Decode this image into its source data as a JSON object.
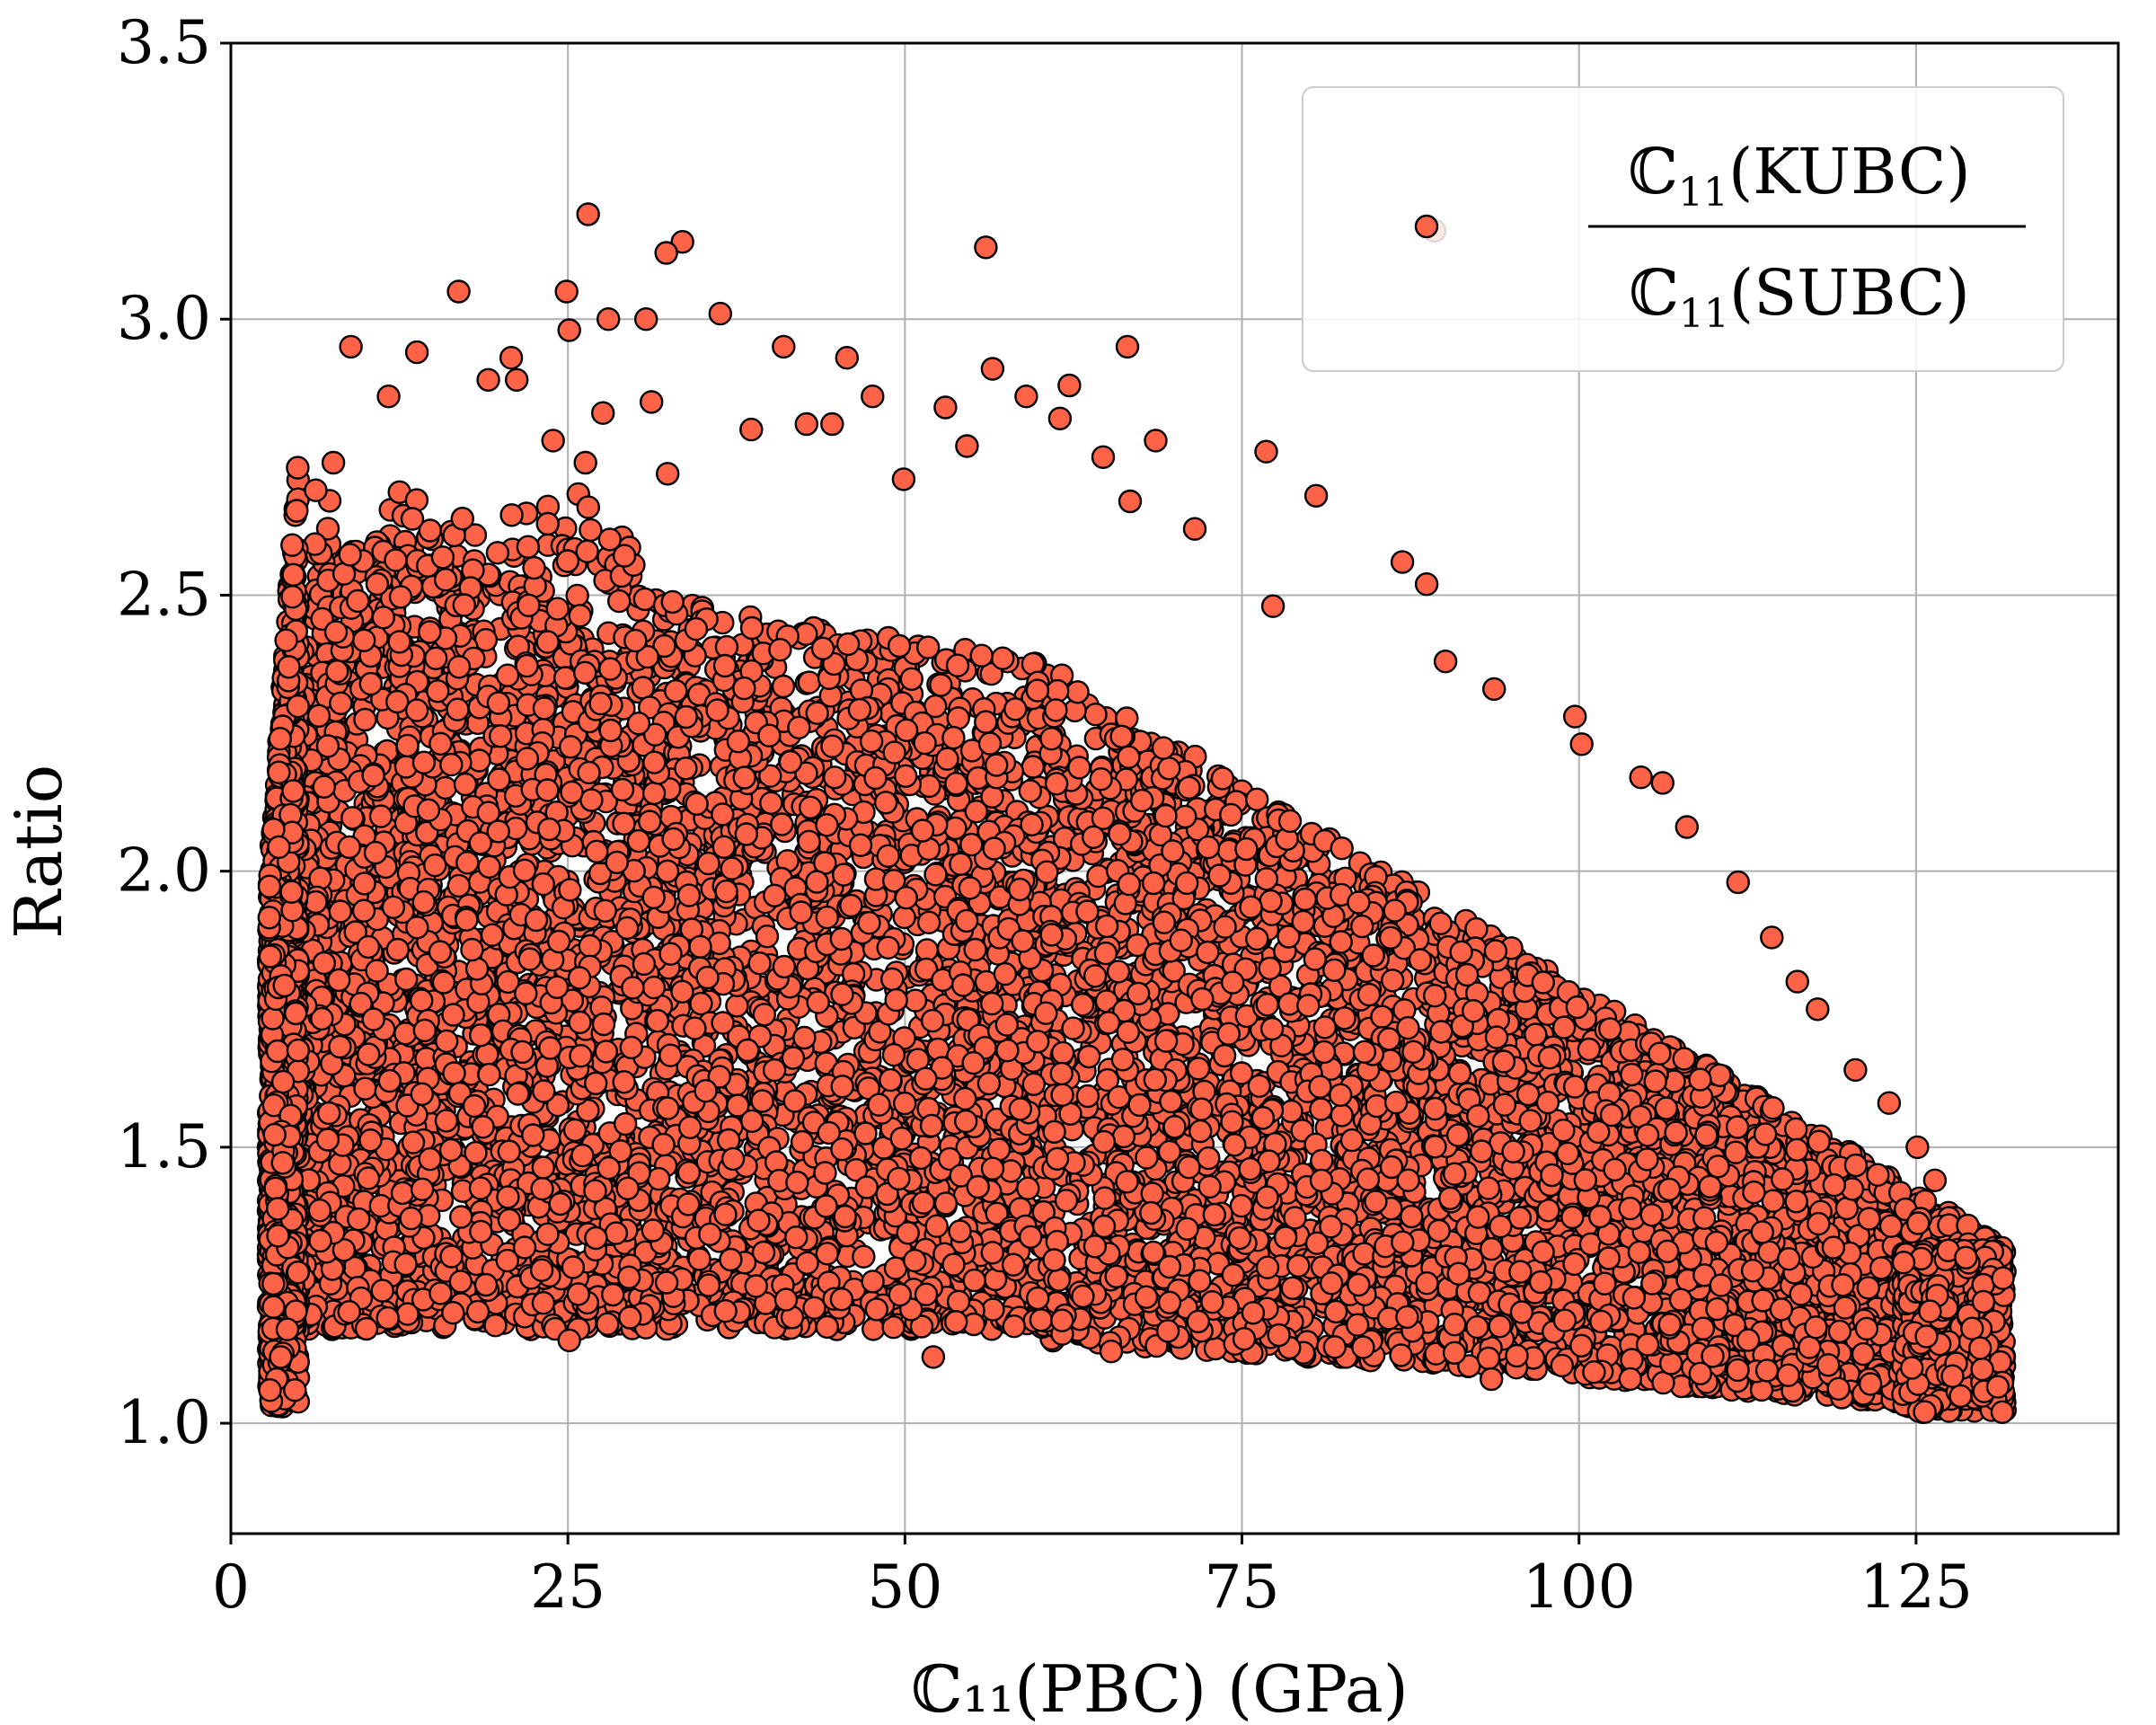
{
  "chart_data": {
    "type": "scatter",
    "xlabel": "ℂ₁₁(PBC) (GPa)",
    "ylabel": "Ratio",
    "xlim": [
      0,
      140
    ],
    "ylim": [
      0.8,
      3.5
    ],
    "xticks": [
      0,
      25,
      50,
      75,
      100,
      125
    ],
    "yticks": [
      1.0,
      1.5,
      2.0,
      2.5,
      3.0,
      3.5
    ],
    "xtick_labels": [
      "0",
      "25",
      "50",
      "75",
      "100",
      "125"
    ],
    "ytick_labels": [
      "1.0",
      "1.5",
      "2.0",
      "2.5",
      "3.0",
      "3.5"
    ],
    "grid": true,
    "legend": {
      "position": "top-right",
      "numerator_main": "ℂ",
      "numerator_sub": "11",
      "numerator_rest": "(KUBC)",
      "denominator_main": "ℂ",
      "denominator_sub": "11",
      "denominator_rest": "(SUBC)"
    },
    "marker_color": "#ff6347",
    "marker_edge": "#000000",
    "series": [
      {
        "points": [
          [
            26.5,
            3.19
          ],
          [
            33.5,
            3.14
          ],
          [
            56.0,
            3.13
          ],
          [
            89.3,
            3.16
          ],
          [
            32.3,
            3.12
          ],
          [
            24.9,
            3.05
          ],
          [
            16.9,
            3.05
          ],
          [
            36.3,
            3.01
          ],
          [
            28.0,
            3.0
          ],
          [
            30.8,
            3.0
          ],
          [
            25.1,
            2.98
          ],
          [
            8.9,
            2.95
          ],
          [
            13.8,
            2.94
          ],
          [
            41.0,
            2.95
          ],
          [
            66.5,
            2.95
          ],
          [
            20.8,
            2.93
          ],
          [
            45.7,
            2.93
          ],
          [
            56.5,
            2.91
          ],
          [
            19.1,
            2.89
          ],
          [
            21.2,
            2.89
          ],
          [
            62.2,
            2.88
          ],
          [
            59.0,
            2.86
          ],
          [
            11.7,
            2.86
          ],
          [
            47.6,
            2.86
          ],
          [
            31.2,
            2.85
          ],
          [
            53.0,
            2.84
          ],
          [
            27.6,
            2.83
          ],
          [
            61.5,
            2.82
          ],
          [
            44.6,
            2.81
          ],
          [
            42.7,
            2.81
          ],
          [
            38.6,
            2.8
          ],
          [
            68.6,
            2.78
          ],
          [
            54.6,
            2.77
          ],
          [
            23.9,
            2.78
          ],
          [
            76.8,
            2.76
          ],
          [
            64.7,
            2.75
          ],
          [
            7.6,
            2.74
          ],
          [
            26.3,
            2.74
          ],
          [
            32.4,
            2.72
          ],
          [
            49.9,
            2.71
          ],
          [
            6.3,
            2.69
          ],
          [
            80.5,
            2.68
          ],
          [
            66.7,
            2.67
          ],
          [
            71.5,
            2.62
          ],
          [
            77.3,
            2.48
          ],
          [
            88.7,
            2.52
          ],
          [
            86.9,
            2.56
          ],
          [
            90.1,
            2.38
          ],
          [
            93.7,
            2.33
          ],
          [
            99.7,
            2.28
          ],
          [
            100.2,
            2.23
          ],
          [
            104.6,
            2.17
          ],
          [
            106.2,
            2.16
          ],
          [
            108.0,
            2.08
          ],
          [
            111.8,
            1.98
          ],
          [
            114.3,
            1.88
          ],
          [
            116.2,
            1.8
          ],
          [
            117.7,
            1.75
          ],
          [
            120.5,
            1.64
          ],
          [
            123.0,
            1.58
          ],
          [
            125.1,
            1.5
          ],
          [
            126.4,
            1.44
          ],
          [
            128.7,
            1.3
          ],
          [
            130.0,
            1.22
          ],
          [
            131.4,
            1.02
          ],
          [
            25.1,
            1.15
          ],
          [
            52.1,
            1.12
          ],
          [
            65.3,
            1.13
          ],
          [
            93.5,
            1.08
          ],
          [
            109.0,
            1.09
          ],
          [
            3.0,
            1.04
          ],
          [
            3.4,
            1.08
          ],
          [
            3.7,
            1.12
          ],
          [
            4.2,
            1.17
          ],
          [
            2.9,
            1.06
          ]
        ]
      }
    ]
  }
}
